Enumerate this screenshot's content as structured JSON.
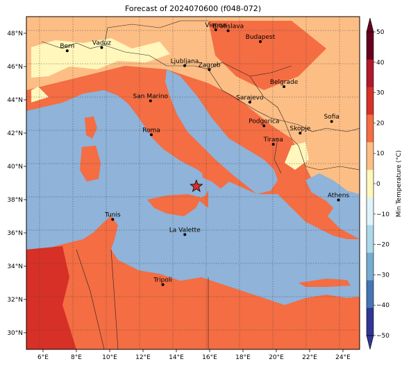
{
  "title": "Forecast of 2024070600 (f048-072)",
  "map": {
    "lon_range": [
      5,
      25
    ],
    "lat_range": [
      29,
      49
    ],
    "lon_ticks": [
      "6°E",
      "8°E",
      "10°E",
      "12°E",
      "14°E",
      "16°E",
      "18°E",
      "20°E",
      "22°E",
      "24°E"
    ],
    "lat_ticks": [
      "30°N",
      "32°N",
      "34°N",
      "36°N",
      "38°N",
      "40°N",
      "42°N",
      "44°N",
      "46°N",
      "48°N"
    ],
    "colors": {
      "sea": "#8fb3d9",
      "c0_10": "#fff7bc",
      "c10_20": "#fdbe85",
      "c20_30": "#f46d43",
      "c30_40": "#d73027",
      "border": "#222222"
    }
  },
  "cities": [
    {
      "name": "Bern",
      "lon": 7.45,
      "lat": 46.95
    },
    {
      "name": "Vaduz",
      "lon": 9.52,
      "lat": 47.14
    },
    {
      "name": "Vienna",
      "lon": 16.37,
      "lat": 48.21
    },
    {
      "name": "Bratislava",
      "lon": 17.11,
      "lat": 48.15
    },
    {
      "name": "Budapest",
      "lon": 19.04,
      "lat": 47.5
    },
    {
      "name": "Ljubljana",
      "lon": 14.5,
      "lat": 46.05
    },
    {
      "name": "Zagreb",
      "lon": 15.98,
      "lat": 45.81
    },
    {
      "name": "Belgrade",
      "lon": 20.46,
      "lat": 44.79
    },
    {
      "name": "San Marino",
      "lon": 12.45,
      "lat": 43.94
    },
    {
      "name": "Sarajevo",
      "lon": 18.41,
      "lat": 43.86
    },
    {
      "name": "Sofia",
      "lon": 23.32,
      "lat": 42.7
    },
    {
      "name": "Podgorica",
      "lon": 19.26,
      "lat": 42.44
    },
    {
      "name": "Skopje",
      "lon": 21.43,
      "lat": 42.0
    },
    {
      "name": "Roma",
      "lon": 12.5,
      "lat": 41.9
    },
    {
      "name": "Tirana",
      "lon": 19.82,
      "lat": 41.33
    },
    {
      "name": "Athens",
      "lon": 23.73,
      "lat": 37.98
    },
    {
      "name": "Tunis",
      "lon": 10.18,
      "lat": 36.81
    },
    {
      "name": "La Valette",
      "lon": 14.51,
      "lat": 35.9
    },
    {
      "name": "Tripoli",
      "lon": 13.19,
      "lat": 32.89
    }
  ],
  "marker": {
    "name": "star-marker",
    "lon": 15.2,
    "lat": 38.8,
    "color": "#d73027"
  },
  "colorbar": {
    "label": "Min Temperature (°C)",
    "ticks": [
      "50",
      "40",
      "30",
      "20",
      "10",
      "0",
      "−10",
      "−20",
      "−30",
      "−40",
      "−50"
    ],
    "bands": [
      "#67001f",
      "#b2182b",
      "#d73027",
      "#f46d43",
      "#fdbe85",
      "#fff7bc",
      "#e0f3f8",
      "#abd9e9",
      "#74add1",
      "#4575b4",
      "#313695"
    ]
  }
}
